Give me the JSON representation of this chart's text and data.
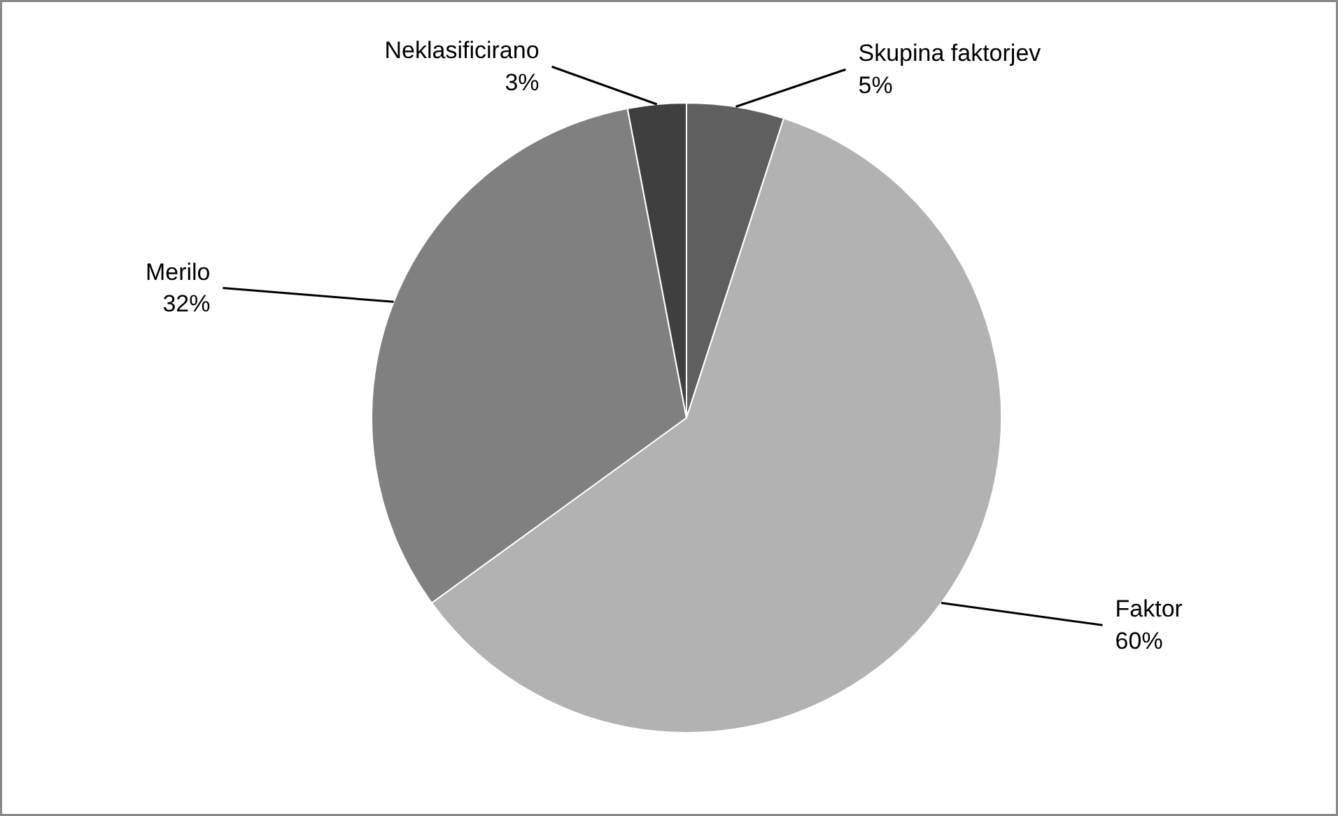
{
  "chart_data": {
    "type": "pie",
    "categories": [
      "Skupina faktorjev",
      "Faktor",
      "Merilo",
      "Neklasificirano"
    ],
    "values": [
      5,
      60,
      32,
      3
    ],
    "value_labels": [
      "5%",
      "60%",
      "32%",
      "3%"
    ],
    "colors": [
      "#5f5f5f",
      "#b2b2b2",
      "#808080",
      "#3f3f3f"
    ]
  }
}
